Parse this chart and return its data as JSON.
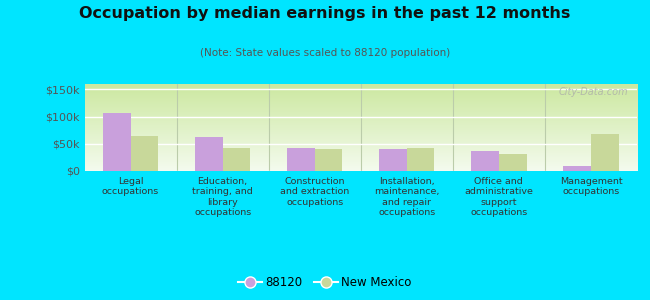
{
  "title": "Occupation by median earnings in the past 12 months",
  "subtitle": "(Note: State values scaled to 88120 population)",
  "categories": [
    "Legal\noccupations",
    "Education,\ntraining, and\nlibrary\noccupations",
    "Construction\nand extraction\noccupations",
    "Installation,\nmaintenance,\nand repair\noccupations",
    "Office and\nadministrative\nsupport\noccupations",
    "Management\noccupations"
  ],
  "values_88120": [
    107000,
    63000,
    42000,
    40000,
    36000,
    9000
  ],
  "values_nm": [
    65000,
    43000,
    41000,
    43000,
    31000,
    68000
  ],
  "color_88120": "#c9a0dc",
  "color_nm": "#c8d89a",
  "ylim": [
    0,
    160000
  ],
  "yticks": [
    0,
    50000,
    100000,
    150000
  ],
  "ytick_labels": [
    "$0",
    "$50k",
    "$100k",
    "$150k"
  ],
  "bg_top": "#f0f8e8",
  "bg_bottom": "#d8eec0",
  "outer_background": "#00e5ff",
  "legend_label_88120": "88120",
  "legend_label_nm": "New Mexico",
  "watermark": "City-Data.com",
  "bar_width": 0.3
}
